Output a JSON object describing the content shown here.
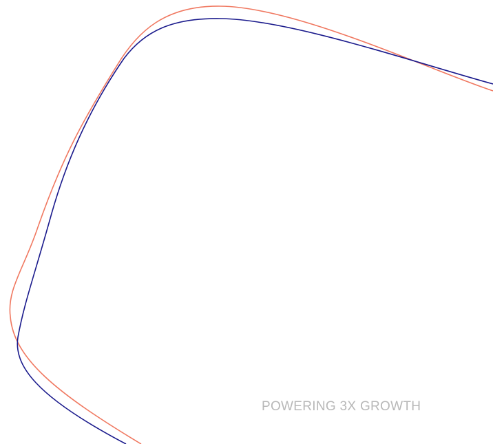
{
  "tagline": {
    "text": "POWERING 3X GROWTH",
    "color": "#b8b8b8"
  },
  "decorative_lines": {
    "outer_line_color": "#f07860",
    "inner_line_color": "#1a1a8c"
  }
}
